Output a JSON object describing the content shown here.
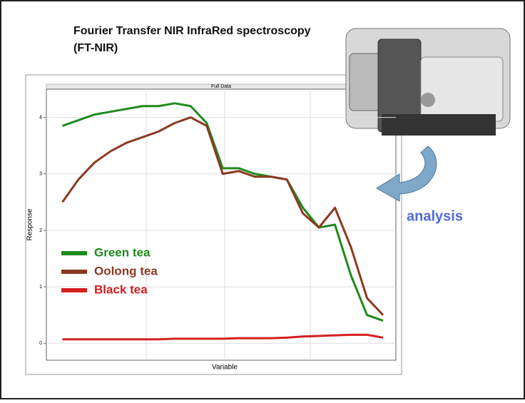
{
  "title": "Fourier Transfer NIR InfraRed spectroscopy",
  "subtitle": "(FT-NIR)",
  "annotation": "analysis",
  "chart_data": {
    "type": "line",
    "title": "Full Data",
    "x_label": "Variable",
    "y_label": "Response",
    "x": [
      0,
      5,
      10,
      15,
      20,
      25,
      30,
      35,
      40,
      45,
      50,
      55,
      60,
      65,
      70,
      75,
      80,
      85,
      90,
      95,
      100
    ],
    "xlim": [
      -5,
      104
    ],
    "ylim": [
      -0.3,
      4.5
    ],
    "yticks": [
      0,
      1,
      2,
      3,
      4
    ],
    "grid": true,
    "series": [
      {
        "name": "Green tea",
        "color": "#1e8a1e",
        "values": [
          3.85,
          3.95,
          4.05,
          4.1,
          4.15,
          4.2,
          4.2,
          4.25,
          4.2,
          3.9,
          3.1,
          3.1,
          3.0,
          2.95,
          2.9,
          2.4,
          2.05,
          2.1,
          1.2,
          0.5,
          0.4
        ]
      },
      {
        "name": "Oolong tea",
        "color": "#8b3a20",
        "values": [
          2.5,
          2.9,
          3.2,
          3.4,
          3.55,
          3.65,
          3.75,
          3.9,
          4.0,
          3.85,
          3.0,
          3.05,
          2.95,
          2.95,
          2.9,
          2.3,
          2.05,
          2.4,
          1.7,
          0.8,
          0.5
        ]
      },
      {
        "name": "Black tea",
        "color": "#d42020",
        "values": [
          0.07,
          0.07,
          0.07,
          0.07,
          0.07,
          0.07,
          0.07,
          0.08,
          0.08,
          0.08,
          0.08,
          0.09,
          0.09,
          0.09,
          0.1,
          0.12,
          0.13,
          0.14,
          0.15,
          0.15,
          0.1
        ]
      }
    ]
  }
}
